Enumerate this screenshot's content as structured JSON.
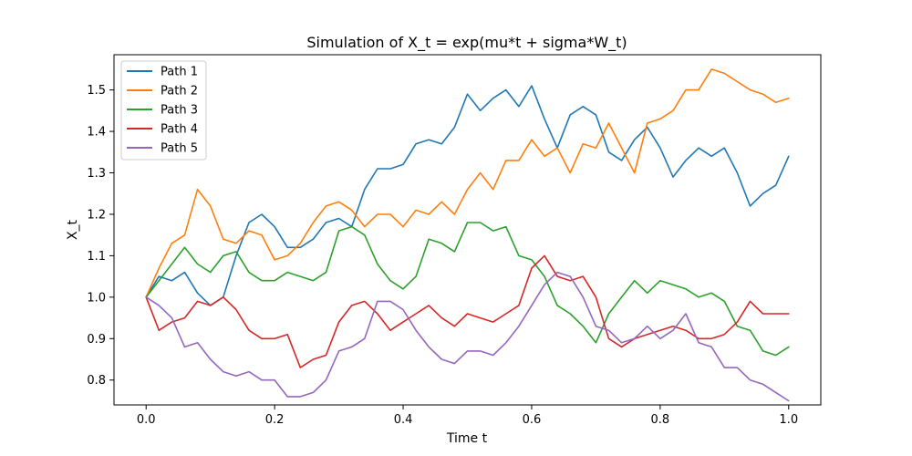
{
  "chart_data": {
    "type": "line",
    "title": "Simulation of X_t = exp(mu*t + sigma*W_t)",
    "xlabel": "Time t",
    "ylabel": "X_t",
    "xlim": [
      -0.05,
      1.05
    ],
    "ylim": [
      0.74,
      1.585
    ],
    "xticks": [
      0.0,
      0.2,
      0.4,
      0.6,
      0.8,
      1.0
    ],
    "xtick_labels": [
      "0.0",
      "0.2",
      "0.4",
      "0.6",
      "0.8",
      "1.0"
    ],
    "yticks": [
      0.8,
      0.9,
      1.0,
      1.1,
      1.2,
      1.3,
      1.4,
      1.5
    ],
    "ytick_labels": [
      "0.8",
      "0.9",
      "1.0",
      "1.1",
      "1.2",
      "1.3",
      "1.4",
      "1.5"
    ],
    "grid": false,
    "legend_position": "top-left",
    "series": [
      {
        "name": "Path 1",
        "color": "#1f77b4",
        "x": [
          0.0,
          0.02,
          0.04,
          0.06,
          0.08,
          0.1,
          0.12,
          0.14,
          0.16,
          0.18,
          0.2,
          0.22,
          0.24,
          0.26,
          0.28,
          0.3,
          0.32,
          0.34,
          0.36,
          0.38,
          0.4,
          0.42,
          0.44,
          0.46,
          0.48,
          0.5,
          0.52,
          0.54,
          0.56,
          0.58,
          0.6,
          0.62,
          0.64,
          0.66,
          0.68,
          0.7,
          0.72,
          0.74,
          0.76,
          0.78,
          0.8,
          0.82,
          0.84,
          0.86,
          0.88,
          0.9,
          0.92,
          0.94,
          0.96,
          0.98,
          1.0
        ],
        "values": [
          1.0,
          1.05,
          1.04,
          1.06,
          1.01,
          0.98,
          1.0,
          1.1,
          1.18,
          1.2,
          1.17,
          1.12,
          1.12,
          1.14,
          1.18,
          1.19,
          1.17,
          1.26,
          1.31,
          1.31,
          1.32,
          1.37,
          1.38,
          1.37,
          1.41,
          1.49,
          1.45,
          1.48,
          1.5,
          1.46,
          1.51,
          1.43,
          1.36,
          1.44,
          1.46,
          1.44,
          1.35,
          1.33,
          1.38,
          1.41,
          1.36,
          1.29,
          1.33,
          1.36,
          1.34,
          1.36,
          1.3,
          1.22,
          1.25,
          1.27,
          1.34
        ]
      },
      {
        "name": "Path 2",
        "color": "#ff7f0e",
        "x": [
          0.0,
          0.02,
          0.04,
          0.06,
          0.08,
          0.1,
          0.12,
          0.14,
          0.16,
          0.18,
          0.2,
          0.22,
          0.24,
          0.26,
          0.28,
          0.3,
          0.32,
          0.34,
          0.36,
          0.38,
          0.4,
          0.42,
          0.44,
          0.46,
          0.48,
          0.5,
          0.52,
          0.54,
          0.56,
          0.58,
          0.6,
          0.62,
          0.64,
          0.66,
          0.68,
          0.7,
          0.72,
          0.74,
          0.76,
          0.78,
          0.8,
          0.82,
          0.84,
          0.86,
          0.88,
          0.9,
          0.92,
          0.94,
          0.96,
          0.98,
          1.0
        ],
        "values": [
          1.0,
          1.07,
          1.13,
          1.15,
          1.26,
          1.22,
          1.14,
          1.13,
          1.16,
          1.15,
          1.09,
          1.1,
          1.13,
          1.18,
          1.22,
          1.23,
          1.21,
          1.17,
          1.2,
          1.2,
          1.17,
          1.21,
          1.2,
          1.23,
          1.2,
          1.26,
          1.3,
          1.26,
          1.33,
          1.33,
          1.38,
          1.34,
          1.36,
          1.3,
          1.37,
          1.36,
          1.42,
          1.36,
          1.3,
          1.42,
          1.43,
          1.45,
          1.5,
          1.5,
          1.55,
          1.54,
          1.52,
          1.5,
          1.49,
          1.47,
          1.48
        ]
      },
      {
        "name": "Path 3",
        "color": "#2ca02c",
        "x": [
          0.0,
          0.02,
          0.04,
          0.06,
          0.08,
          0.1,
          0.12,
          0.14,
          0.16,
          0.18,
          0.2,
          0.22,
          0.24,
          0.26,
          0.28,
          0.3,
          0.32,
          0.34,
          0.36,
          0.38,
          0.4,
          0.42,
          0.44,
          0.46,
          0.48,
          0.5,
          0.52,
          0.54,
          0.56,
          0.58,
          0.6,
          0.62,
          0.64,
          0.66,
          0.68,
          0.7,
          0.72,
          0.74,
          0.76,
          0.78,
          0.8,
          0.82,
          0.84,
          0.86,
          0.88,
          0.9,
          0.92,
          0.94,
          0.96,
          0.98,
          1.0
        ],
        "values": [
          1.0,
          1.04,
          1.08,
          1.12,
          1.08,
          1.06,
          1.1,
          1.11,
          1.06,
          1.04,
          1.04,
          1.06,
          1.05,
          1.04,
          1.06,
          1.16,
          1.17,
          1.15,
          1.08,
          1.04,
          1.02,
          1.05,
          1.14,
          1.13,
          1.11,
          1.18,
          1.18,
          1.16,
          1.17,
          1.1,
          1.09,
          1.05,
          0.98,
          0.96,
          0.93,
          0.89,
          0.96,
          1.0,
          1.04,
          1.01,
          1.04,
          1.03,
          1.02,
          1.0,
          1.01,
          0.99,
          0.93,
          0.92,
          0.87,
          0.86,
          0.88
        ]
      },
      {
        "name": "Path 4",
        "color": "#d62728",
        "x": [
          0.0,
          0.02,
          0.04,
          0.06,
          0.08,
          0.1,
          0.12,
          0.14,
          0.16,
          0.18,
          0.2,
          0.22,
          0.24,
          0.26,
          0.28,
          0.3,
          0.32,
          0.34,
          0.36,
          0.38,
          0.4,
          0.42,
          0.44,
          0.46,
          0.48,
          0.5,
          0.52,
          0.54,
          0.56,
          0.58,
          0.6,
          0.62,
          0.64,
          0.66,
          0.68,
          0.7,
          0.72,
          0.74,
          0.76,
          0.78,
          0.8,
          0.82,
          0.84,
          0.86,
          0.88,
          0.9,
          0.92,
          0.94,
          0.96,
          0.98,
          1.0
        ],
        "values": [
          1.0,
          0.92,
          0.94,
          0.95,
          0.99,
          0.98,
          1.0,
          0.97,
          0.92,
          0.9,
          0.9,
          0.91,
          0.83,
          0.85,
          0.86,
          0.94,
          0.98,
          0.99,
          0.96,
          0.92,
          0.94,
          0.96,
          0.98,
          0.95,
          0.93,
          0.96,
          0.95,
          0.94,
          0.96,
          0.98,
          1.07,
          1.1,
          1.05,
          1.04,
          1.05,
          1.0,
          0.9,
          0.88,
          0.9,
          0.91,
          0.92,
          0.93,
          0.92,
          0.9,
          0.9,
          0.91,
          0.94,
          0.99,
          0.96,
          0.96,
          0.96
        ]
      },
      {
        "name": "Path 5",
        "color": "#9467bd",
        "x": [
          0.0,
          0.02,
          0.04,
          0.06,
          0.08,
          0.1,
          0.12,
          0.14,
          0.16,
          0.18,
          0.2,
          0.22,
          0.24,
          0.26,
          0.28,
          0.3,
          0.32,
          0.34,
          0.36,
          0.38,
          0.4,
          0.42,
          0.44,
          0.46,
          0.48,
          0.5,
          0.52,
          0.54,
          0.56,
          0.58,
          0.6,
          0.62,
          0.64,
          0.66,
          0.68,
          0.7,
          0.72,
          0.74,
          0.76,
          0.78,
          0.8,
          0.82,
          0.84,
          0.86,
          0.88,
          0.9,
          0.92,
          0.94,
          0.96,
          0.98,
          1.0
        ],
        "values": [
          1.0,
          0.98,
          0.95,
          0.88,
          0.89,
          0.85,
          0.82,
          0.81,
          0.82,
          0.8,
          0.8,
          0.76,
          0.76,
          0.77,
          0.8,
          0.87,
          0.88,
          0.9,
          0.99,
          0.99,
          0.97,
          0.92,
          0.88,
          0.85,
          0.84,
          0.87,
          0.87,
          0.86,
          0.89,
          0.93,
          0.98,
          1.03,
          1.06,
          1.05,
          1.0,
          0.93,
          0.92,
          0.89,
          0.9,
          0.93,
          0.9,
          0.92,
          0.96,
          0.89,
          0.88,
          0.83,
          0.83,
          0.8,
          0.79,
          0.77,
          0.75
        ]
      }
    ]
  }
}
